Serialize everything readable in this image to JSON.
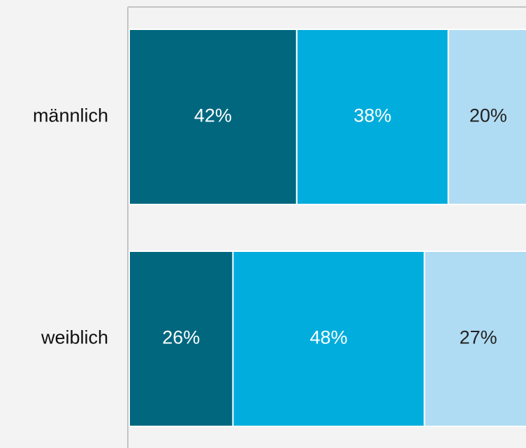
{
  "chart_data": {
    "type": "stacked-bar-horizontal",
    "categories": [
      "männlich",
      "weiblich"
    ],
    "series": [
      {
        "color": "#00677f",
        "text_color": "#ffffff",
        "values": [
          42,
          26
        ],
        "value_labels": [
          "42%",
          "26%"
        ]
      },
      {
        "color": "#00addc",
        "text_color": "#ffffff",
        "values": [
          38,
          48
        ],
        "value_labels": [
          "38%",
          "48%"
        ]
      },
      {
        "color": "#b0dcf3",
        "text_color": "#222222",
        "values": [
          20,
          27
        ],
        "value_labels": [
          "20%",
          "27%"
        ]
      }
    ],
    "xlim": [
      0,
      100
    ]
  }
}
